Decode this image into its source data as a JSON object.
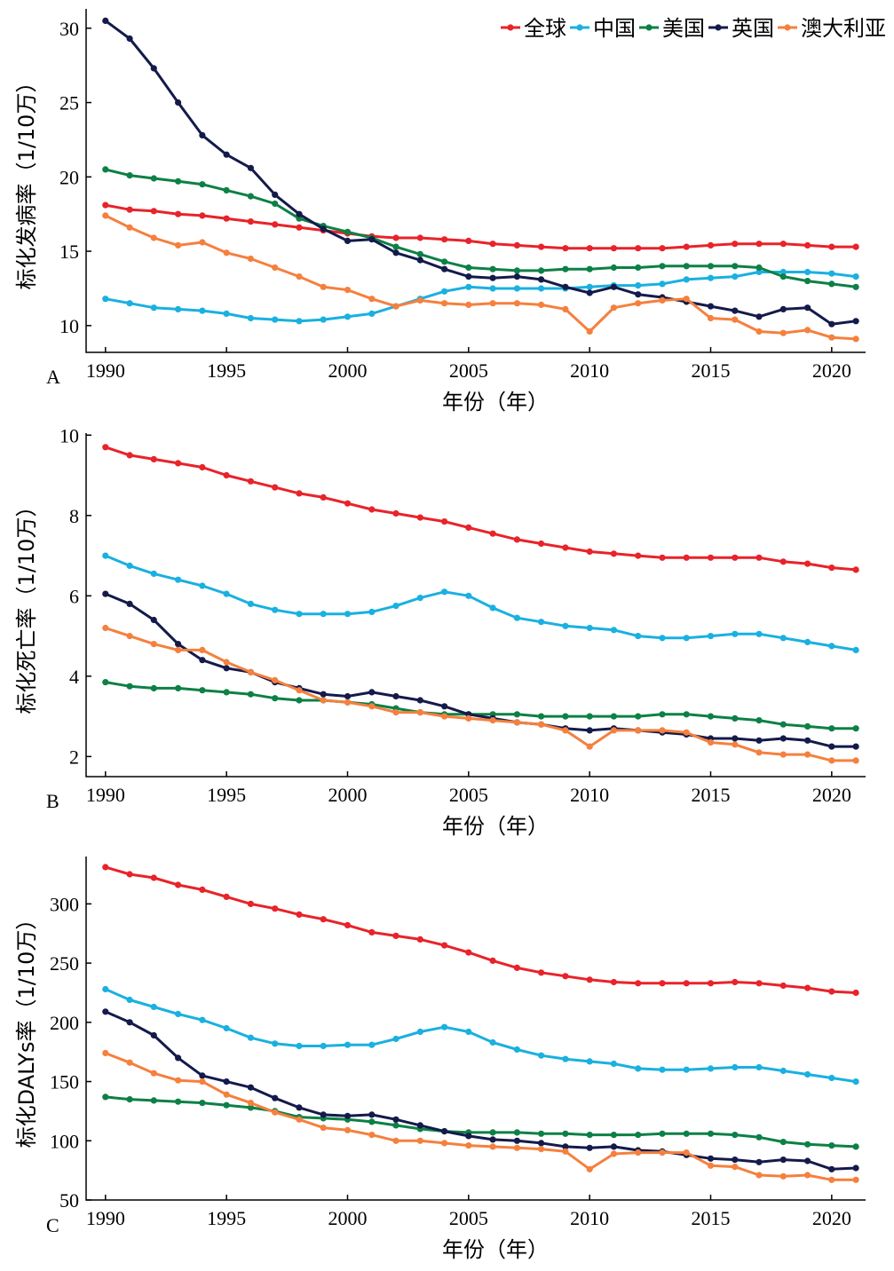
{
  "legend": [
    "全球",
    "中国",
    "美国",
    "英国",
    "澳大利亚"
  ],
  "colors": {
    "全球": "#e8232a",
    "中国": "#1ab0e0",
    "美国": "#0d8046",
    "英国": "#141a4a",
    "澳大利亚": "#f5803e"
  },
  "chart_data": [
    {
      "type": "line",
      "panel": "A",
      "xlabel": "年份（年）",
      "ylabel": "标化发病率（1/10万）",
      "ylim": [
        8.2,
        31.3
      ],
      "yticks": [
        10,
        15,
        20,
        25,
        30
      ],
      "xlim": [
        1989.2,
        2021.4
      ],
      "xticks": [
        1990,
        1995,
        2000,
        2005,
        2010,
        2015,
        2020
      ],
      "x": [
        1990,
        1991,
        1992,
        1993,
        1994,
        1995,
        1996,
        1997,
        1998,
        1999,
        2000,
        2001,
        2002,
        2003,
        2004,
        2005,
        2006,
        2007,
        2008,
        2009,
        2010,
        2011,
        2012,
        2013,
        2014,
        2015,
        2016,
        2017,
        2018,
        2019,
        2020,
        2021
      ],
      "series": [
        {
          "name": "全球",
          "values": [
            18.1,
            17.8,
            17.7,
            17.5,
            17.4,
            17.2,
            17.0,
            16.8,
            16.6,
            16.4,
            16.2,
            16.0,
            15.9,
            15.9,
            15.8,
            15.7,
            15.5,
            15.4,
            15.3,
            15.2,
            15.2,
            15.2,
            15.2,
            15.2,
            15.3,
            15.4,
            15.5,
            15.5,
            15.5,
            15.4,
            15.3,
            15.3
          ]
        },
        {
          "name": "中国",
          "values": [
            11.8,
            11.5,
            11.2,
            11.1,
            11.0,
            10.8,
            10.5,
            10.4,
            10.3,
            10.4,
            10.6,
            10.8,
            11.3,
            11.8,
            12.3,
            12.6,
            12.5,
            12.5,
            12.5,
            12.5,
            12.6,
            12.7,
            12.7,
            12.8,
            13.1,
            13.2,
            13.3,
            13.6,
            13.6,
            13.6,
            13.5,
            13.3
          ]
        },
        {
          "name": "美国",
          "values": [
            20.5,
            20.1,
            19.9,
            19.7,
            19.5,
            19.1,
            18.7,
            18.2,
            17.2,
            16.7,
            16.3,
            15.9,
            15.3,
            14.8,
            14.3,
            13.9,
            13.8,
            13.7,
            13.7,
            13.8,
            13.8,
            13.9,
            13.9,
            14.0,
            14.0,
            14.0,
            14.0,
            13.9,
            13.3,
            13.0,
            12.8,
            12.6
          ]
        },
        {
          "name": "英国",
          "values": [
            30.5,
            29.3,
            27.3,
            25.0,
            22.8,
            21.5,
            20.6,
            18.8,
            17.5,
            16.5,
            15.7,
            15.8,
            14.9,
            14.4,
            13.8,
            13.3,
            13.2,
            13.3,
            13.1,
            12.6,
            12.2,
            12.6,
            12.1,
            11.9,
            11.6,
            11.3,
            11.0,
            10.6,
            11.1,
            11.2,
            10.1,
            10.3
          ]
        },
        {
          "name": "澳大利亚",
          "values": [
            17.4,
            16.6,
            15.9,
            15.4,
            15.6,
            14.9,
            14.5,
            13.9,
            13.3,
            12.6,
            12.4,
            11.8,
            11.3,
            11.7,
            11.5,
            11.4,
            11.5,
            11.5,
            11.4,
            11.1,
            9.6,
            11.2,
            11.5,
            11.7,
            11.8,
            10.5,
            10.4,
            9.6,
            9.5,
            9.7,
            9.2,
            9.1
          ]
        }
      ]
    },
    {
      "type": "line",
      "panel": "B",
      "xlabel": "年份（年）",
      "ylabel": "标化死亡率（1/10万）",
      "ylim": [
        1.5,
        10.05
      ],
      "yticks": [
        2,
        4,
        6,
        8,
        10
      ],
      "xlim": [
        1989.2,
        2021.4
      ],
      "xticks": [
        1990,
        1995,
        2000,
        2005,
        2010,
        2015,
        2020
      ],
      "x": [
        1990,
        1991,
        1992,
        1993,
        1994,
        1995,
        1996,
        1997,
        1998,
        1999,
        2000,
        2001,
        2002,
        2003,
        2004,
        2005,
        2006,
        2007,
        2008,
        2009,
        2010,
        2011,
        2012,
        2013,
        2014,
        2015,
        2016,
        2017,
        2018,
        2019,
        2020,
        2021
      ],
      "series": [
        {
          "name": "全球",
          "values": [
            9.7,
            9.5,
            9.4,
            9.3,
            9.2,
            9.0,
            8.85,
            8.7,
            8.55,
            8.45,
            8.3,
            8.15,
            8.05,
            7.95,
            7.85,
            7.7,
            7.55,
            7.4,
            7.3,
            7.2,
            7.1,
            7.05,
            7.0,
            6.95,
            6.95,
            6.95,
            6.95,
            6.95,
            6.85,
            6.8,
            6.7,
            6.65
          ]
        },
        {
          "name": "中国",
          "values": [
            7.0,
            6.75,
            6.55,
            6.4,
            6.25,
            6.05,
            5.8,
            5.65,
            5.55,
            5.55,
            5.55,
            5.6,
            5.75,
            5.95,
            6.1,
            6.0,
            5.7,
            5.45,
            5.35,
            5.25,
            5.2,
            5.15,
            5.0,
            4.95,
            4.95,
            5.0,
            5.05,
            5.05,
            4.95,
            4.85,
            4.75,
            4.65
          ]
        },
        {
          "name": "美国",
          "values": [
            3.85,
            3.75,
            3.7,
            3.7,
            3.65,
            3.6,
            3.55,
            3.45,
            3.4,
            3.4,
            3.35,
            3.3,
            3.2,
            3.1,
            3.05,
            3.05,
            3.05,
            3.05,
            3.0,
            3.0,
            3.0,
            3.0,
            3.0,
            3.05,
            3.05,
            3.0,
            2.95,
            2.9,
            2.8,
            2.75,
            2.7,
            2.7
          ]
        },
        {
          "name": "英国",
          "values": [
            6.05,
            5.8,
            5.4,
            4.8,
            4.4,
            4.2,
            4.1,
            3.85,
            3.7,
            3.55,
            3.5,
            3.6,
            3.5,
            3.4,
            3.25,
            3.05,
            2.95,
            2.85,
            2.8,
            2.7,
            2.65,
            2.7,
            2.65,
            2.6,
            2.55,
            2.45,
            2.45,
            2.4,
            2.45,
            2.4,
            2.25,
            2.25
          ]
        },
        {
          "name": "澳大利亚",
          "values": [
            5.2,
            5.0,
            4.8,
            4.65,
            4.65,
            4.35,
            4.1,
            3.9,
            3.65,
            3.4,
            3.35,
            3.25,
            3.1,
            3.1,
            3.0,
            2.95,
            2.9,
            2.85,
            2.8,
            2.65,
            2.25,
            2.65,
            2.65,
            2.65,
            2.6,
            2.35,
            2.3,
            2.1,
            2.05,
            2.05,
            1.9,
            1.9
          ]
        }
      ]
    },
    {
      "type": "line",
      "panel": "C",
      "xlabel": "年份（年）",
      "ylabel": "标化DALYs率（1/10万）",
      "ylim": [
        50,
        340
      ],
      "yticks": [
        50,
        100,
        150,
        200,
        250,
        300
      ],
      "xlim": [
        1989.2,
        2021.4
      ],
      "xticks": [
        1990,
        1995,
        2000,
        2005,
        2010,
        2015,
        2020
      ],
      "x": [
        1990,
        1991,
        1992,
        1993,
        1994,
        1995,
        1996,
        1997,
        1998,
        1999,
        2000,
        2001,
        2002,
        2003,
        2004,
        2005,
        2006,
        2007,
        2008,
        2009,
        2010,
        2011,
        2012,
        2013,
        2014,
        2015,
        2016,
        2017,
        2018,
        2019,
        2020,
        2021
      ],
      "series": [
        {
          "name": "全球",
          "values": [
            331,
            325,
            322,
            316,
            312,
            306,
            300,
            296,
            291,
            287,
            282,
            276,
            273,
            270,
            265,
            259,
            252,
            246,
            242,
            239,
            236,
            234,
            233,
            233,
            233,
            233,
            234,
            233,
            231,
            229,
            226,
            225
          ]
        },
        {
          "name": "中国",
          "values": [
            228,
            219,
            213,
            207,
            202,
            195,
            187,
            182,
            180,
            180,
            181,
            181,
            186,
            192,
            196,
            192,
            183,
            177,
            172,
            169,
            167,
            165,
            161,
            160,
            160,
            161,
            162,
            162,
            159,
            156,
            153,
            150
          ]
        },
        {
          "name": "美国",
          "values": [
            137,
            135,
            134,
            133,
            132,
            130,
            128,
            125,
            120,
            119,
            118,
            116,
            113,
            110,
            108,
            107,
            107,
            107,
            106,
            106,
            105,
            105,
            105,
            106,
            106,
            106,
            105,
            103,
            99,
            97,
            96,
            95
          ]
        },
        {
          "name": "英国",
          "values": [
            209,
            200,
            189,
            170,
            155,
            150,
            145,
            136,
            128,
            122,
            121,
            122,
            118,
            113,
            108,
            104,
            101,
            100,
            98,
            95,
            94,
            95,
            92,
            91,
            88,
            85,
            84,
            82,
            84,
            83,
            76,
            77
          ]
        },
        {
          "name": "澳大利亚",
          "values": [
            174,
            166,
            157,
            151,
            150,
            139,
            132,
            124,
            118,
            111,
            109,
            105,
            100,
            100,
            98,
            96,
            95,
            94,
            93,
            91,
            76,
            89,
            90,
            90,
            90,
            79,
            78,
            71,
            70,
            71,
            67,
            67
          ]
        }
      ]
    }
  ],
  "panels": [
    {
      "letter": "A"
    },
    {
      "letter": "B"
    },
    {
      "letter": "C"
    }
  ]
}
